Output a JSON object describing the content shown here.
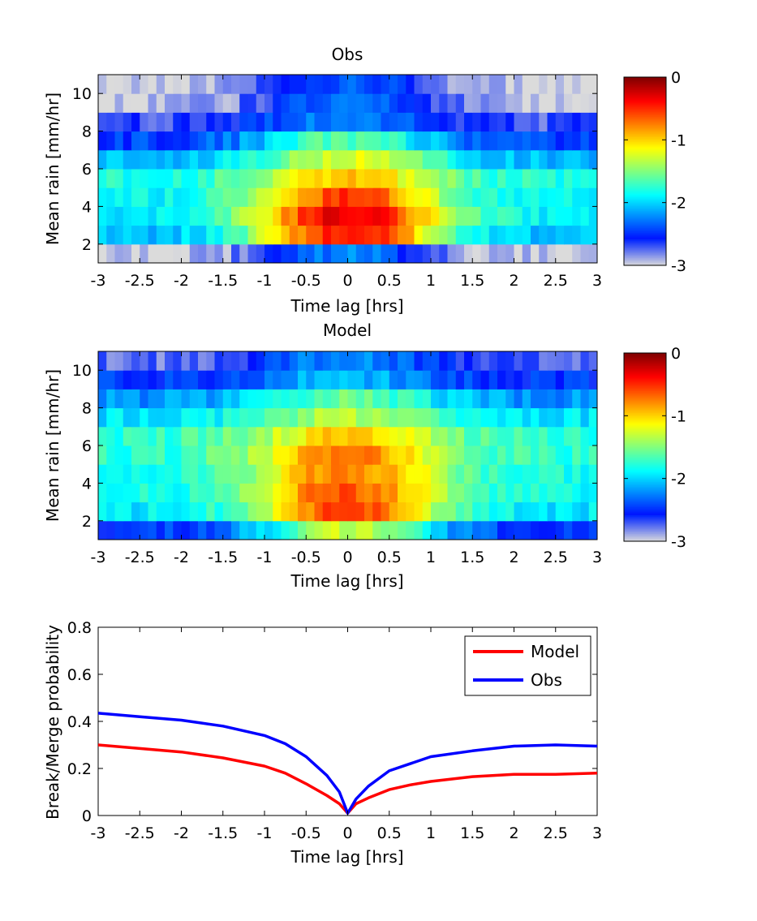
{
  "chart_data": [
    {
      "type": "heatmap",
      "title": "Obs",
      "xlabel": "Time lag [hrs]",
      "ylabel": "Mean rain [mm/hr]",
      "xlim": [
        -3,
        3
      ],
      "ylim": [
        1,
        11
      ],
      "xticks": [
        "-3",
        "-2.5",
        "-2",
        "-1.5",
        "-1",
        "-0.5",
        "0",
        "0.5",
        "1",
        "1.5",
        "2",
        "2.5",
        "3"
      ],
      "yticks": [
        "2",
        "4",
        "6",
        "8",
        "10"
      ],
      "x_bins": 60,
      "y_bins": [
        "1-2",
        "2-3",
        "3-4",
        "4-5",
        "5-6",
        "6-7",
        "7-8",
        "8-9",
        "9-10",
        "10-11"
      ],
      "colorbar": {
        "ticks": [
          "0",
          "-1",
          "-2",
          "-3"
        ],
        "range": [
          -3,
          0
        ],
        "colormap": "jet-gray"
      },
      "row_profiles": [
        {
          "bin": "1-2",
          "center_log10": -2.25,
          "edge_log10": -3.0
        },
        {
          "bin": "2-3",
          "center_log10": -0.35,
          "edge_log10": -2.1
        },
        {
          "bin": "3-4",
          "center_log10": -0.25,
          "edge_log10": -1.9
        },
        {
          "bin": "4-5",
          "center_log10": -0.55,
          "edge_log10": -1.9
        },
        {
          "bin": "5-6",
          "center_log10": -0.95,
          "edge_log10": -1.8
        },
        {
          "bin": "6-7",
          "center_log10": -1.2,
          "edge_log10": -2.1
        },
        {
          "bin": "7-8",
          "center_log10": -1.6,
          "edge_log10": -2.45
        },
        {
          "bin": "8-9",
          "center_log10": -2.2,
          "edge_log10": -2.7
        },
        {
          "bin": "9-10",
          "center_log10": -2.3,
          "edge_log10": -2.95
        },
        {
          "bin": "10-11",
          "center_log10": -2.35,
          "edge_log10": -3.0
        }
      ]
    },
    {
      "type": "heatmap",
      "title": "Model",
      "xlabel": "Time lag [hrs]",
      "ylabel": "Mean rain [mm/hr]",
      "xlim": [
        -3,
        3
      ],
      "ylim": [
        1,
        11
      ],
      "xticks": [
        "-3",
        "-2.5",
        "-2",
        "-1.5",
        "-1",
        "-0.5",
        "0",
        "0.5",
        "1",
        "1.5",
        "2",
        "2.5",
        "3"
      ],
      "yticks": [
        "2",
        "4",
        "6",
        "8",
        "10"
      ],
      "x_bins": 60,
      "y_bins": [
        "1-2",
        "2-3",
        "3-4",
        "4-5",
        "5-6",
        "6-7",
        "7-8",
        "8-9",
        "9-10",
        "10-11"
      ],
      "colorbar": {
        "ticks": [
          "0",
          "-1",
          "-2",
          "-3"
        ],
        "range": [
          -3,
          0
        ],
        "colormap": "jet-gray"
      },
      "row_profiles": [
        {
          "bin": "1-2",
          "center_log10": -1.3,
          "edge_log10": -2.5
        },
        {
          "bin": "2-3",
          "center_log10": -0.55,
          "edge_log10": -1.95
        },
        {
          "bin": "3-4",
          "center_log10": -0.6,
          "edge_log10": -1.85
        },
        {
          "bin": "4-5",
          "center_log10": -0.7,
          "edge_log10": -1.8
        },
        {
          "bin": "5-6",
          "center_log10": -0.75,
          "edge_log10": -1.75
        },
        {
          "bin": "6-7",
          "center_log10": -0.95,
          "edge_log10": -1.75
        },
        {
          "bin": "7-8",
          "center_log10": -1.35,
          "edge_log10": -1.95
        },
        {
          "bin": "8-9",
          "center_log10": -1.55,
          "edge_log10": -2.2
        },
        {
          "bin": "9-10",
          "center_log10": -2.05,
          "edge_log10": -2.5
        },
        {
          "bin": "10-11",
          "center_log10": -2.2,
          "edge_log10": -2.75
        }
      ]
    },
    {
      "type": "line",
      "xlabel": "Time lag [hrs]",
      "ylabel": "Break/Merge probability",
      "xlim": [
        -3,
        3
      ],
      "ylim": [
        0,
        0.8
      ],
      "xticks": [
        "-3",
        "-2.5",
        "-2",
        "-1.5",
        "-1",
        "-0.5",
        "0",
        "0.5",
        "1",
        "1.5",
        "2",
        "2.5",
        "3"
      ],
      "yticks": [
        "0",
        "0.2",
        "0.4",
        "0.6",
        "0.8"
      ],
      "legend": "top-right",
      "x": [
        -3,
        -2.5,
        -2,
        -1.5,
        -1,
        -0.75,
        -0.5,
        -0.25,
        -0.1,
        0,
        0.1,
        0.25,
        0.5,
        0.75,
        1,
        1.5,
        2,
        2.5,
        3
      ],
      "series": [
        {
          "name": "Model",
          "color": "#ff0000",
          "values": [
            0.3,
            0.285,
            0.27,
            0.245,
            0.21,
            0.18,
            0.135,
            0.085,
            0.05,
            0.01,
            0.05,
            0.075,
            0.11,
            0.13,
            0.145,
            0.165,
            0.175,
            0.175,
            0.18
          ]
        },
        {
          "name": "Obs",
          "color": "#0000ff",
          "values": [
            0.435,
            0.42,
            0.405,
            0.38,
            0.34,
            0.305,
            0.25,
            0.17,
            0.1,
            0.01,
            0.07,
            0.125,
            0.19,
            0.22,
            0.25,
            0.275,
            0.295,
            0.3,
            0.295
          ]
        }
      ]
    }
  ]
}
